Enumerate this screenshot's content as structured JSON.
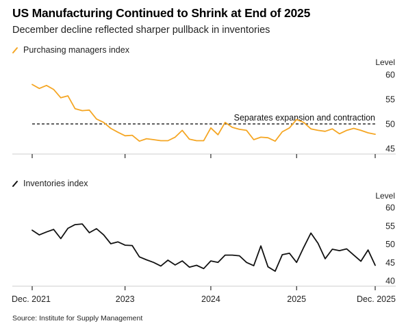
{
  "title": "US Manufacturing Continued to Shrink at End of 2025",
  "subtitle": "December decline reflected sharper pullback in inventories",
  "source": "Source: Institute for Supply Management",
  "colors": {
    "pmi": "#f5a623",
    "inventories": "#111111",
    "reference": "#000000",
    "axis": "#cccccc"
  },
  "legend_icon": "diagonal-line-icon",
  "x_tick_labels": [
    "Dec. 2021",
    "2023",
    "2024",
    "2025",
    "Dec. 2025"
  ],
  "x_tick_dates": [
    "2021-12",
    "2023-01",
    "2024-01",
    "2025-01",
    "2025-12"
  ],
  "chart_data": [
    {
      "type": "line",
      "legend": "Purchasing managers index",
      "ylabel": "Level",
      "ylim": [
        45,
        60
      ],
      "yticks": [
        45,
        50,
        55,
        60
      ],
      "grid": false,
      "legend_placement": "top-left",
      "reference_line": {
        "y": 50,
        "style": "dashed",
        "label": "Separates expansion and contraction"
      },
      "x": [
        "2021-12",
        "2022-01",
        "2022-02",
        "2022-03",
        "2022-04",
        "2022-05",
        "2022-06",
        "2022-07",
        "2022-08",
        "2022-09",
        "2022-10",
        "2022-11",
        "2022-12",
        "2023-01",
        "2023-02",
        "2023-03",
        "2023-04",
        "2023-05",
        "2023-06",
        "2023-07",
        "2023-08",
        "2023-09",
        "2023-10",
        "2023-11",
        "2023-12",
        "2024-01",
        "2024-02",
        "2024-03",
        "2024-04",
        "2024-05",
        "2024-06",
        "2024-07",
        "2024-08",
        "2024-09",
        "2024-10",
        "2024-11",
        "2024-12",
        "2025-01",
        "2025-02",
        "2025-03",
        "2025-04",
        "2025-05",
        "2025-06",
        "2025-07",
        "2025-08",
        "2025-09",
        "2025-10",
        "2025-11",
        "2025-12"
      ],
      "values": [
        58.0,
        57.2,
        57.8,
        57.0,
        55.3,
        55.7,
        53.1,
        52.7,
        52.8,
        51.0,
        50.3,
        49.1,
        48.3,
        47.6,
        47.7,
        46.5,
        47.0,
        46.8,
        46.6,
        46.6,
        47.3,
        48.7,
        46.9,
        46.6,
        46.6,
        49.2,
        47.8,
        50.3,
        49.3,
        48.9,
        48.7,
        46.8,
        47.3,
        47.2,
        46.5,
        48.4,
        49.2,
        50.9,
        50.3,
        49.0,
        48.7,
        48.5,
        49.0,
        48.0,
        48.7,
        49.1,
        48.7,
        48.2,
        47.9
      ]
    },
    {
      "type": "line",
      "legend": "Inventories index",
      "ylabel": "Level",
      "ylim": [
        40,
        60
      ],
      "yticks": [
        40,
        45,
        50,
        55,
        60
      ],
      "grid": false,
      "legend_placement": "top-left",
      "x": [
        "2021-12",
        "2022-01",
        "2022-02",
        "2022-03",
        "2022-04",
        "2022-05",
        "2022-06",
        "2022-07",
        "2022-08",
        "2022-09",
        "2022-10",
        "2022-11",
        "2022-12",
        "2023-01",
        "2023-02",
        "2023-03",
        "2023-04",
        "2023-05",
        "2023-06",
        "2023-07",
        "2023-08",
        "2023-09",
        "2023-10",
        "2023-11",
        "2023-12",
        "2024-01",
        "2024-02",
        "2024-03",
        "2024-04",
        "2024-05",
        "2024-06",
        "2024-07",
        "2024-08",
        "2024-09",
        "2024-10",
        "2024-11",
        "2024-12",
        "2025-01",
        "2025-02",
        "2025-03",
        "2025-04",
        "2025-05",
        "2025-06",
        "2025-07",
        "2025-08",
        "2025-09",
        "2025-10",
        "2025-11",
        "2025-12"
      ],
      "values": [
        53.8,
        52.5,
        53.3,
        54.0,
        51.5,
        54.3,
        55.3,
        55.5,
        53.1,
        54.2,
        52.5,
        50.1,
        50.6,
        49.7,
        49.6,
        46.5,
        45.7,
        45.0,
        44.0,
        45.6,
        44.3,
        45.4,
        43.7,
        44.2,
        43.3,
        45.4,
        45.0,
        47.0,
        47.0,
        46.8,
        45.0,
        44.1,
        49.5,
        43.8,
        42.6,
        47.1,
        47.5,
        45.0,
        49.1,
        53.0,
        50.2,
        46.0,
        48.6,
        48.2,
        48.7,
        47.0,
        45.3,
        48.4,
        44.2
      ]
    }
  ]
}
